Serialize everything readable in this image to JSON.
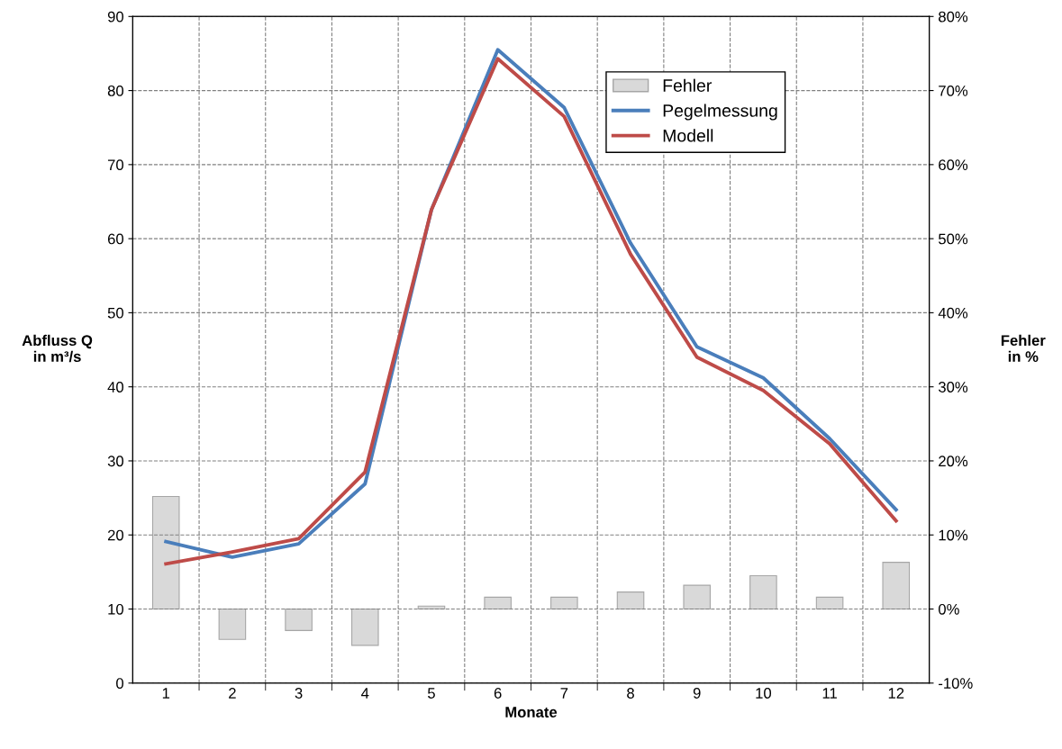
{
  "chart_data": {
    "type": "line",
    "xlabel": "Monate",
    "ylabel": "Abfluss Q\nin m³/s",
    "y2label": "Fehler\nin %",
    "categories": [
      "1",
      "2",
      "3",
      "4",
      "5",
      "6",
      "7",
      "8",
      "9",
      "10",
      "11",
      "12"
    ],
    "series": [
      {
        "name": "Fehler",
        "type": "bar",
        "axis": "y2",
        "color": "#d9d9d9",
        "values": [
          15.2,
          -4.1,
          -2.9,
          -4.9,
          0.4,
          1.6,
          1.6,
          2.3,
          3.2,
          4.5,
          1.6,
          6.3
        ]
      },
      {
        "name": "Pegelmessung",
        "color": "#4a7ebb",
        "values": [
          19.1,
          17.0,
          18.8,
          26.9,
          63.9,
          85.5,
          77.7,
          59.4,
          45.4,
          41.2,
          33.0,
          23.4
        ]
      },
      {
        "name": "Modell",
        "color": "#be4b48",
        "values": [
          16.1,
          17.7,
          19.5,
          28.5,
          63.9,
          84.3,
          76.5,
          57.9,
          44.0,
          39.5,
          32.3,
          21.9
        ]
      }
    ],
    "ylim": [
      0,
      90
    ],
    "yticks": [
      0,
      10,
      20,
      30,
      40,
      50,
      60,
      70,
      80,
      90
    ],
    "y2lim": [
      -10,
      80
    ],
    "y2ticks": [
      {
        "value": -10,
        "label": "-10%"
      },
      {
        "value": 0,
        "label": "0%"
      },
      {
        "value": 10,
        "label": "10%"
      },
      {
        "value": 20,
        "label": "20%"
      },
      {
        "value": 30,
        "label": "30%"
      },
      {
        "value": 40,
        "label": "40%"
      },
      {
        "value": 50,
        "label": "50%"
      },
      {
        "value": 60,
        "label": "60%"
      },
      {
        "value": 70,
        "label": "70%"
      },
      {
        "value": 80,
        "label": "80%"
      }
    ],
    "grid": true,
    "legend": "top right",
    "marker": "none",
    "line_style": "solid"
  }
}
